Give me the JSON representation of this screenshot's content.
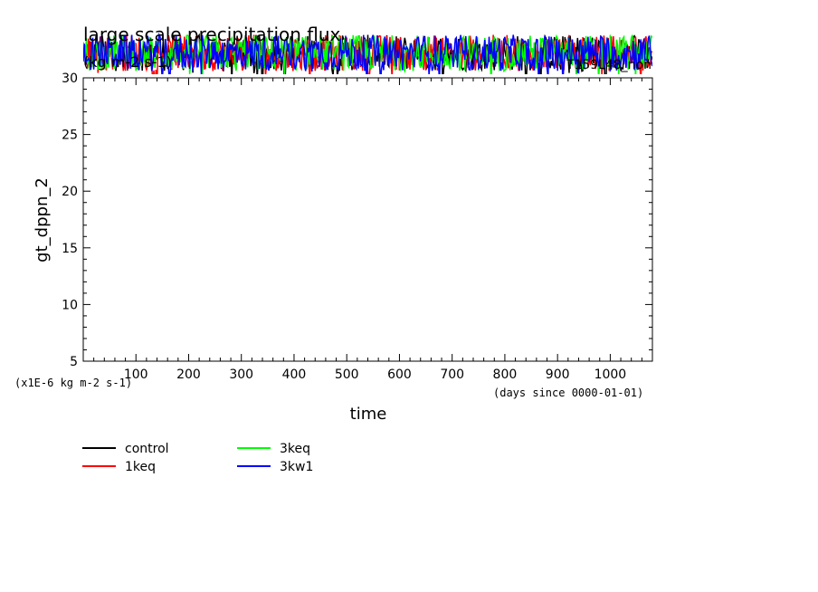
{
  "chart_data": {
    "type": "line",
    "title": "large scale precipitation flux",
    "units": "(kg m-2 s-1)",
    "run_label": "T159L48_non",
    "ylabel": "gt_dppn_2",
    "xlabel": "time",
    "y_scale_note": "(x1E-6 kg m-2 s-1)",
    "x_unit_note": "(days since 0000-01-01)",
    "xlim": [
      0,
      1080
    ],
    "ylim": [
      5,
      30
    ],
    "x_ticks": [
      100,
      200,
      300,
      400,
      500,
      600,
      700,
      800,
      900,
      1000
    ],
    "y_ticks": [
      5,
      10,
      15,
      20,
      25,
      30
    ],
    "grid": false,
    "legend_position": "bottom-left, two columns",
    "note": "Series values lie mostly above the y-axis maximum (about 30 to 34); only the lower tails are drawn above the plot frame.",
    "series": [
      {
        "name": "control",
        "color": "#000000"
      },
      {
        "name": "1keq",
        "color": "#ff0000"
      },
      {
        "name": "3keq",
        "color": "#00ff00"
      },
      {
        "name": "3kw1",
        "color": "#0000ff"
      }
    ]
  }
}
